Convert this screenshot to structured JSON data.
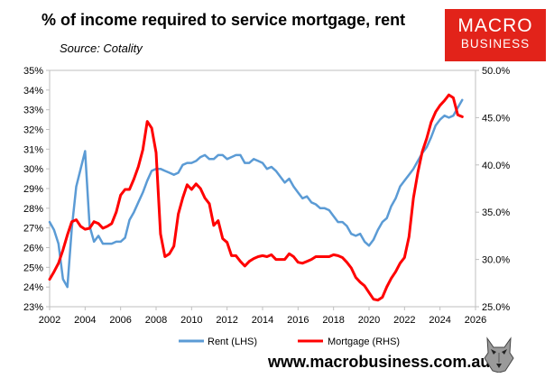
{
  "header": {
    "title": "% of income required to service mortgage, rent",
    "source": "Source: Cotality"
  },
  "logo": {
    "line1": "MACRO",
    "line2": "BUSINESS",
    "color": "#e2231a"
  },
  "footer": {
    "url": "www.macrobusiness.com.au"
  },
  "chart_data": {
    "type": "line",
    "title": "% of income required to service mortgage, rent",
    "xlim": [
      2002,
      2026
    ],
    "x_ticks": [
      2002,
      2004,
      2006,
      2008,
      2010,
      2012,
      2014,
      2016,
      2018,
      2020,
      2022,
      2024,
      2026
    ],
    "x_tick_labels": [
      "2002",
      "2004",
      "2006",
      "2008",
      "2010",
      "2012",
      "2014",
      "2016",
      "2018",
      "2020",
      "2022",
      "2024",
      "2026"
    ],
    "y_left": {
      "lim": [
        23,
        35
      ],
      "ticks": [
        23,
        24,
        25,
        26,
        27,
        28,
        29,
        30,
        31,
        32,
        33,
        34,
        35
      ],
      "tick_labels": [
        "23%",
        "24%",
        "25%",
        "26%",
        "27%",
        "28%",
        "29%",
        "30%",
        "31%",
        "32%",
        "33%",
        "34%",
        "35%"
      ]
    },
    "y_right": {
      "lim": [
        25,
        50
      ],
      "ticks": [
        25,
        30,
        35,
        40,
        45,
        50
      ],
      "tick_labels": [
        "25.0%",
        "30.0%",
        "35.0%",
        "40.0%",
        "45.0%",
        "50.0%"
      ]
    },
    "grid": false,
    "legend_position": "bottom",
    "series": [
      {
        "name": "Rent (LHS)",
        "axis": "left",
        "color": "#5b9bd5",
        "x": [
          2002.0,
          2002.25,
          2002.5,
          2002.75,
          2003.0,
          2003.25,
          2003.5,
          2003.75,
          2004.0,
          2004.25,
          2004.5,
          2004.75,
          2005.0,
          2005.25,
          2005.5,
          2005.75,
          2006.0,
          2006.25,
          2006.5,
          2006.75,
          2007.0,
          2007.25,
          2007.5,
          2007.75,
          2008.0,
          2008.25,
          2008.5,
          2008.75,
          2009.0,
          2009.25,
          2009.5,
          2009.75,
          2010.0,
          2010.25,
          2010.5,
          2010.75,
          2011.0,
          2011.25,
          2011.5,
          2011.75,
          2012.0,
          2012.25,
          2012.5,
          2012.75,
          2013.0,
          2013.25,
          2013.5,
          2013.75,
          2014.0,
          2014.25,
          2014.5,
          2014.75,
          2015.0,
          2015.25,
          2015.5,
          2015.75,
          2016.0,
          2016.25,
          2016.5,
          2016.75,
          2017.0,
          2017.25,
          2017.5,
          2017.75,
          2018.0,
          2018.25,
          2018.5,
          2018.75,
          2019.0,
          2019.25,
          2019.5,
          2019.75,
          2020.0,
          2020.25,
          2020.5,
          2020.75,
          2021.0,
          2021.25,
          2021.5,
          2021.75,
          2022.0,
          2022.25,
          2022.5,
          2022.75,
          2023.0,
          2023.25,
          2023.5,
          2023.75,
          2024.0,
          2024.25,
          2024.5,
          2024.75,
          2025.0,
          2025.25
        ],
        "values": [
          27.3,
          26.9,
          26.2,
          24.4,
          24.0,
          27.0,
          29.1,
          30.0,
          30.9,
          27.1,
          26.3,
          26.6,
          26.2,
          26.2,
          26.2,
          26.3,
          26.3,
          26.5,
          27.4,
          27.8,
          28.3,
          28.8,
          29.4,
          29.9,
          30.0,
          30.0,
          29.9,
          29.8,
          29.7,
          29.8,
          30.2,
          30.3,
          30.3,
          30.4,
          30.6,
          30.7,
          30.5,
          30.5,
          30.7,
          30.7,
          30.5,
          30.6,
          30.7,
          30.7,
          30.3,
          30.3,
          30.5,
          30.4,
          30.3,
          30.0,
          30.1,
          29.9,
          29.6,
          29.3,
          29.5,
          29.1,
          28.8,
          28.5,
          28.6,
          28.3,
          28.2,
          28.0,
          28.0,
          27.9,
          27.6,
          27.3,
          27.3,
          27.1,
          26.7,
          26.6,
          26.7,
          26.3,
          26.1,
          26.4,
          26.9,
          27.3,
          27.5,
          28.1,
          28.5,
          29.1,
          29.4,
          29.7,
          30.0,
          30.4,
          30.8,
          31.1,
          31.6,
          32.2,
          32.5,
          32.7,
          32.6,
          32.7,
          33.1,
          33.5
        ]
      },
      {
        "name": "Mortgage (RHS)",
        "axis": "right",
        "color": "#ff0000",
        "x": [
          2002.0,
          2002.25,
          2002.5,
          2002.75,
          2003.0,
          2003.25,
          2003.5,
          2003.75,
          2004.0,
          2004.25,
          2004.5,
          2004.75,
          2005.0,
          2005.25,
          2005.5,
          2005.75,
          2006.0,
          2006.25,
          2006.5,
          2006.75,
          2007.0,
          2007.25,
          2007.5,
          2007.75,
          2008.0,
          2008.25,
          2008.5,
          2008.75,
          2009.0,
          2009.25,
          2009.5,
          2009.75,
          2010.0,
          2010.25,
          2010.5,
          2010.75,
          2011.0,
          2011.25,
          2011.5,
          2011.75,
          2012.0,
          2012.25,
          2012.5,
          2012.75,
          2013.0,
          2013.25,
          2013.5,
          2013.75,
          2014.0,
          2014.25,
          2014.5,
          2014.75,
          2015.0,
          2015.25,
          2015.5,
          2015.75,
          2016.0,
          2016.25,
          2016.5,
          2016.75,
          2017.0,
          2017.25,
          2017.5,
          2017.75,
          2018.0,
          2018.25,
          2018.5,
          2018.75,
          2019.0,
          2019.25,
          2019.5,
          2019.75,
          2020.0,
          2020.25,
          2020.5,
          2020.75,
          2021.0,
          2021.25,
          2021.5,
          2021.75,
          2022.0,
          2022.25,
          2022.5,
          2022.75,
          2023.0,
          2023.25,
          2023.5,
          2023.75,
          2024.0,
          2024.25,
          2024.5,
          2024.75,
          2025.0,
          2025.25
        ],
        "values": [
          27.9,
          28.7,
          29.6,
          31.0,
          32.6,
          34.0,
          34.2,
          33.5,
          33.2,
          33.3,
          34.0,
          33.8,
          33.3,
          33.5,
          33.8,
          35.0,
          36.8,
          37.4,
          37.4,
          38.5,
          39.8,
          41.6,
          44.6,
          43.9,
          41.3,
          32.7,
          30.3,
          30.6,
          31.4,
          34.8,
          36.5,
          37.9,
          37.4,
          38.0,
          37.5,
          36.5,
          35.9,
          33.6,
          34.1,
          32.2,
          31.8,
          30.4,
          30.4,
          29.8,
          29.3,
          29.8,
          30.1,
          30.3,
          30.4,
          30.3,
          30.5,
          30.0,
          30.0,
          30.0,
          30.6,
          30.3,
          29.7,
          29.6,
          29.8,
          30.0,
          30.3,
          30.3,
          30.3,
          30.3,
          30.5,
          30.4,
          30.2,
          29.7,
          29.1,
          28.1,
          27.6,
          27.2,
          26.5,
          25.8,
          25.7,
          26.0,
          27.1,
          28.0,
          28.7,
          29.6,
          30.2,
          32.4,
          36.5,
          39.2,
          41.4,
          42.8,
          44.5,
          45.6,
          46.3,
          46.8,
          47.4,
          47.1,
          45.3,
          45.1
        ]
      }
    ]
  }
}
